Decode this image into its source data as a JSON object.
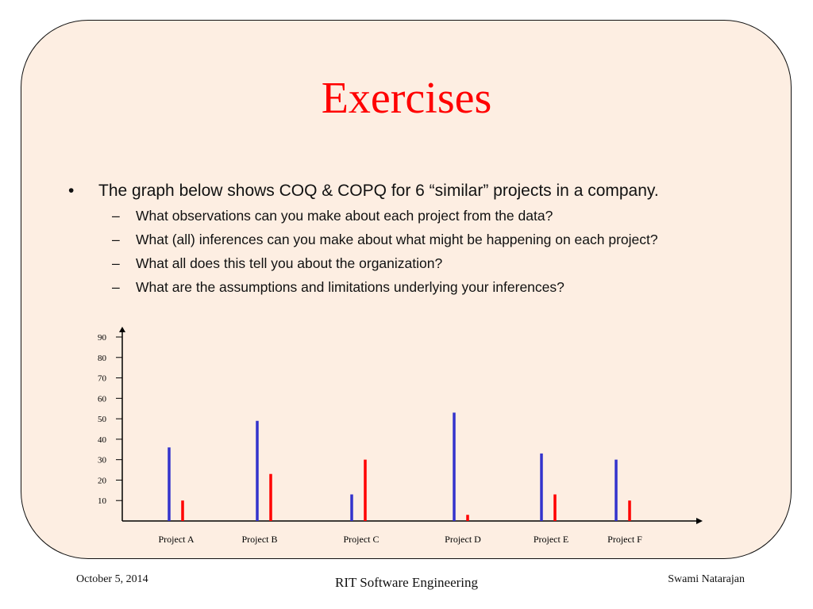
{
  "slide": {
    "title": "Exercises",
    "bullet": {
      "marker": "•",
      "text": "The graph below shows COQ & COPQ for 6 “similar” projects in a company.",
      "subitems": [
        {
          "marker": "–",
          "text": "What observations can you make about each project from the data?"
        },
        {
          "marker": "–",
          "text": "What (all) inferences can you make about what might be happening on each project?"
        },
        {
          "marker": "–",
          "text": "What all does this tell you about the organization?"
        },
        {
          "marker": "–",
          "text": "What are the assumptions and limitations underlying your inferences?"
        }
      ]
    }
  },
  "chart_data": {
    "type": "bar",
    "categories": [
      "Project A",
      "Project B",
      "Project C",
      "Project D",
      "Project E",
      "Project F"
    ],
    "series": [
      {
        "color": "#3333cc",
        "values": [
          36,
          49,
          13,
          53,
          33,
          30
        ]
      },
      {
        "color": "#ff0000",
        "values": [
          10,
          23,
          30,
          3,
          13,
          10
        ]
      }
    ],
    "yticks": [
      10,
      20,
      30,
      40,
      50,
      60,
      70,
      80,
      90
    ],
    "ylim": [
      0,
      90
    ],
    "grid": false
  },
  "footer": {
    "date": "October 5, 2014",
    "center": "RIT Software Engineering",
    "author": "Swami Natarajan"
  }
}
